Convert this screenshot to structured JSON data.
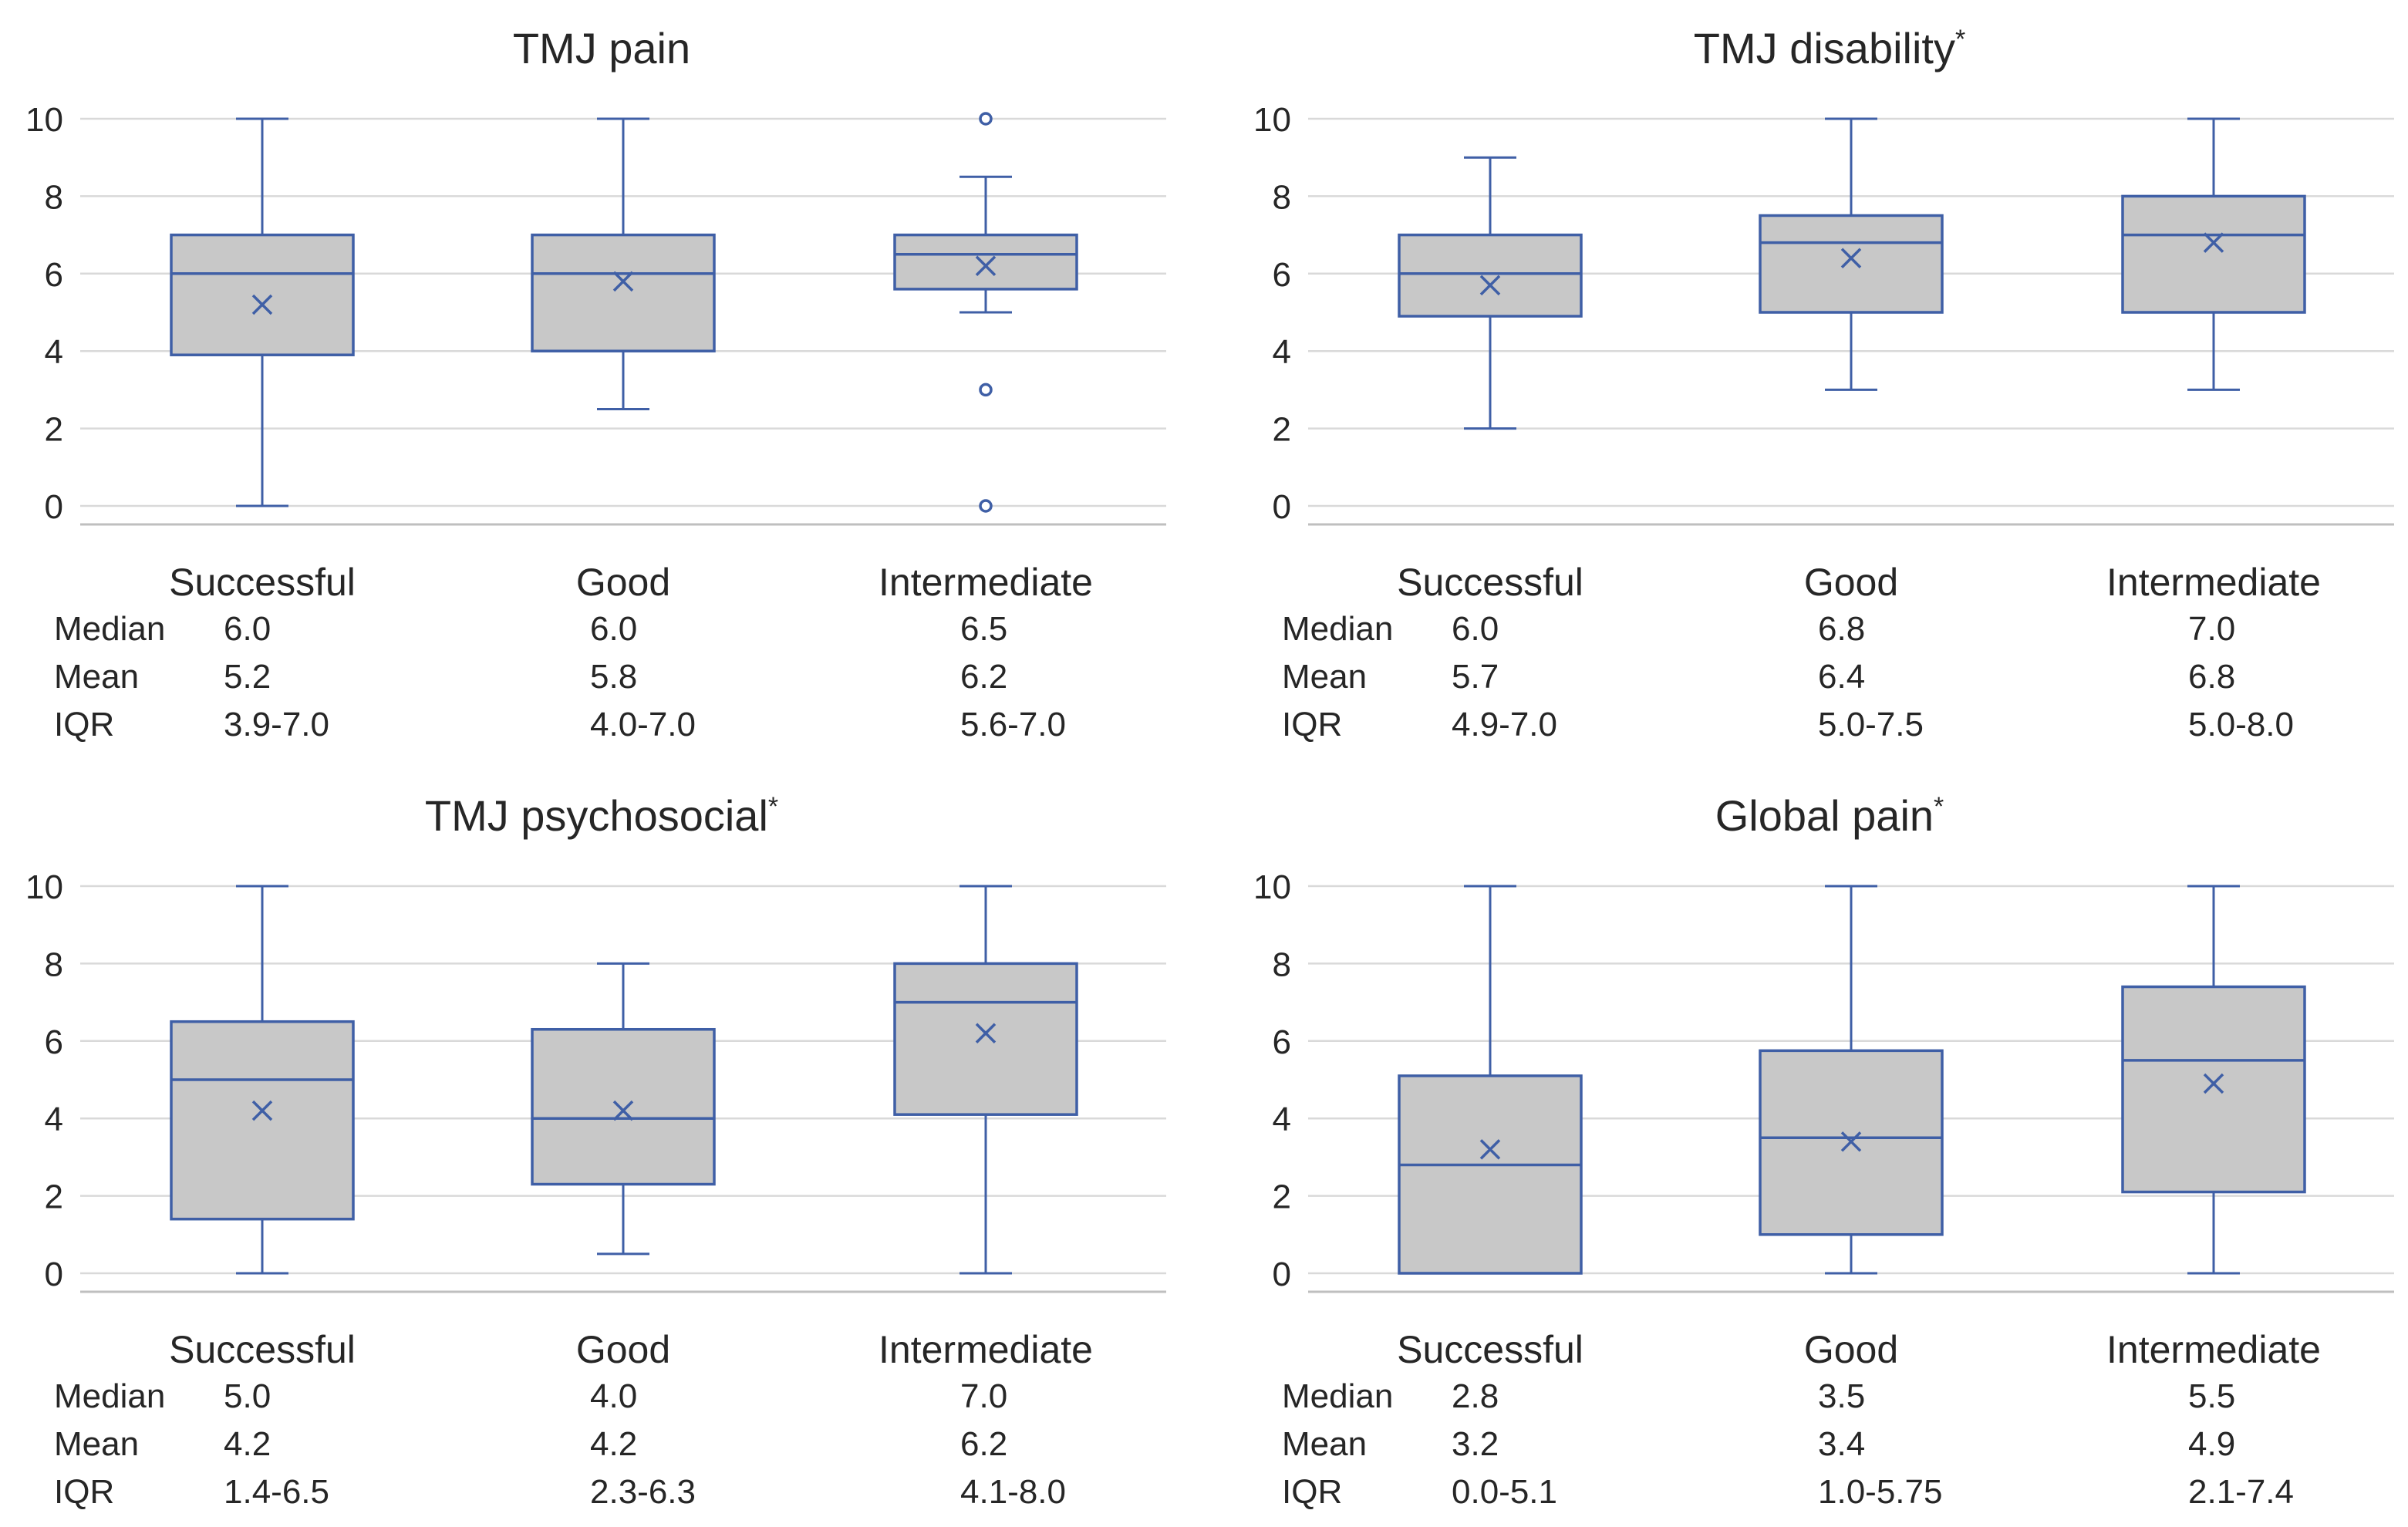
{
  "chart_data": [
    {
      "type": "boxplot",
      "title": "TMJ pain",
      "title_marker": "",
      "ylim": [
        0,
        10
      ],
      "yticks": [
        "0",
        "2",
        "4",
        "6",
        "8",
        "10"
      ],
      "categories": [
        "Successful",
        "Good",
        "Intermediate"
      ],
      "boxes": [
        {
          "whisker_low": 0,
          "q1": 3.9,
          "median": 6.0,
          "q3": 7.0,
          "whisker_high": 10,
          "mean": 5.2,
          "outliers": []
        },
        {
          "whisker_low": 2.5,
          "q1": 4.0,
          "median": 6.0,
          "q3": 7.0,
          "whisker_high": 10,
          "mean": 5.8,
          "outliers": []
        },
        {
          "whisker_low": 5.0,
          "q1": 5.6,
          "median": 6.5,
          "q3": 7.0,
          "whisker_high": 8.5,
          "mean": 6.2,
          "outliers": [
            10,
            3,
            0
          ]
        }
      ],
      "stat_labels": [
        "Median",
        "Mean",
        "IQR"
      ],
      "stats": [
        [
          "6.0",
          "5.2",
          "3.9-7.0"
        ],
        [
          "6.0",
          "5.8",
          "4.0-7.0"
        ],
        [
          "6.5",
          "6.2",
          "5.6-7.0"
        ]
      ]
    },
    {
      "type": "boxplot",
      "title": "TMJ disability",
      "title_marker": "*",
      "ylim": [
        0,
        10
      ],
      "yticks": [
        "0",
        "2",
        "4",
        "6",
        "8",
        "10"
      ],
      "categories": [
        "Successful",
        "Good",
        "Intermediate"
      ],
      "boxes": [
        {
          "whisker_low": 2,
          "q1": 4.9,
          "median": 6.0,
          "q3": 7.0,
          "whisker_high": 9,
          "mean": 5.7,
          "outliers": []
        },
        {
          "whisker_low": 3,
          "q1": 5.0,
          "median": 6.8,
          "q3": 7.5,
          "whisker_high": 10,
          "mean": 6.4,
          "outliers": []
        },
        {
          "whisker_low": 3,
          "q1": 5.0,
          "median": 7.0,
          "q3": 8.0,
          "whisker_high": 10,
          "mean": 6.8,
          "outliers": []
        }
      ],
      "stat_labels": [
        "Median",
        "Mean",
        "IQR"
      ],
      "stats": [
        [
          "6.0",
          "5.7",
          "4.9-7.0"
        ],
        [
          "6.8",
          "6.4",
          "5.0-7.5"
        ],
        [
          "7.0",
          "6.8",
          "5.0-8.0"
        ]
      ]
    },
    {
      "type": "boxplot",
      "title": "TMJ psychosocial",
      "title_marker": "*",
      "ylim": [
        0,
        10
      ],
      "yticks": [
        "0",
        "2",
        "4",
        "6",
        "8",
        "10"
      ],
      "categories": [
        "Successful",
        "Good",
        "Intermediate"
      ],
      "boxes": [
        {
          "whisker_low": 0,
          "q1": 1.4,
          "median": 5.0,
          "q3": 6.5,
          "whisker_high": 10,
          "mean": 4.2,
          "outliers": []
        },
        {
          "whisker_low": 0.5,
          "q1": 2.3,
          "median": 4.0,
          "q3": 6.3,
          "whisker_high": 8,
          "mean": 4.2,
          "outliers": []
        },
        {
          "whisker_low": 0,
          "q1": 4.1,
          "median": 7.0,
          "q3": 8.0,
          "whisker_high": 10,
          "mean": 6.2,
          "outliers": []
        }
      ],
      "stat_labels": [
        "Median",
        "Mean",
        "IQR"
      ],
      "stats": [
        [
          "5.0",
          "4.2",
          "1.4-6.5"
        ],
        [
          "4.0",
          "4.2",
          "2.3-6.3"
        ],
        [
          "7.0",
          "6.2",
          "4.1-8.0"
        ]
      ]
    },
    {
      "type": "boxplot",
      "title": "Global pain",
      "title_marker": "*",
      "ylim": [
        0,
        10
      ],
      "yticks": [
        "0",
        "2",
        "4",
        "6",
        "8",
        "10"
      ],
      "categories": [
        "Successful",
        "Good",
        "Intermediate"
      ],
      "boxes": [
        {
          "whisker_low": 0,
          "q1": 0.0,
          "median": 2.8,
          "q3": 5.1,
          "whisker_high": 10,
          "mean": 3.2,
          "outliers": []
        },
        {
          "whisker_low": 0,
          "q1": 1.0,
          "median": 3.5,
          "q3": 5.75,
          "whisker_high": 10,
          "mean": 3.4,
          "outliers": []
        },
        {
          "whisker_low": 0,
          "q1": 2.1,
          "median": 5.5,
          "q3": 7.4,
          "whisker_high": 10,
          "mean": 4.9,
          "outliers": []
        }
      ],
      "stat_labels": [
        "Median",
        "Mean",
        "IQR"
      ],
      "stats": [
        [
          "2.8",
          "3.2",
          "0.0-5.1"
        ],
        [
          "3.5",
          "3.4",
          "1.0-5.75"
        ],
        [
          "5.5",
          "4.9",
          "2.1-7.4"
        ]
      ]
    }
  ],
  "colors": {
    "stroke": "#3f5fa6",
    "box_fill": "#c8c8c8",
    "grid": "#d9d9d9",
    "axis": "#bfbfbf",
    "text": "#262626"
  }
}
